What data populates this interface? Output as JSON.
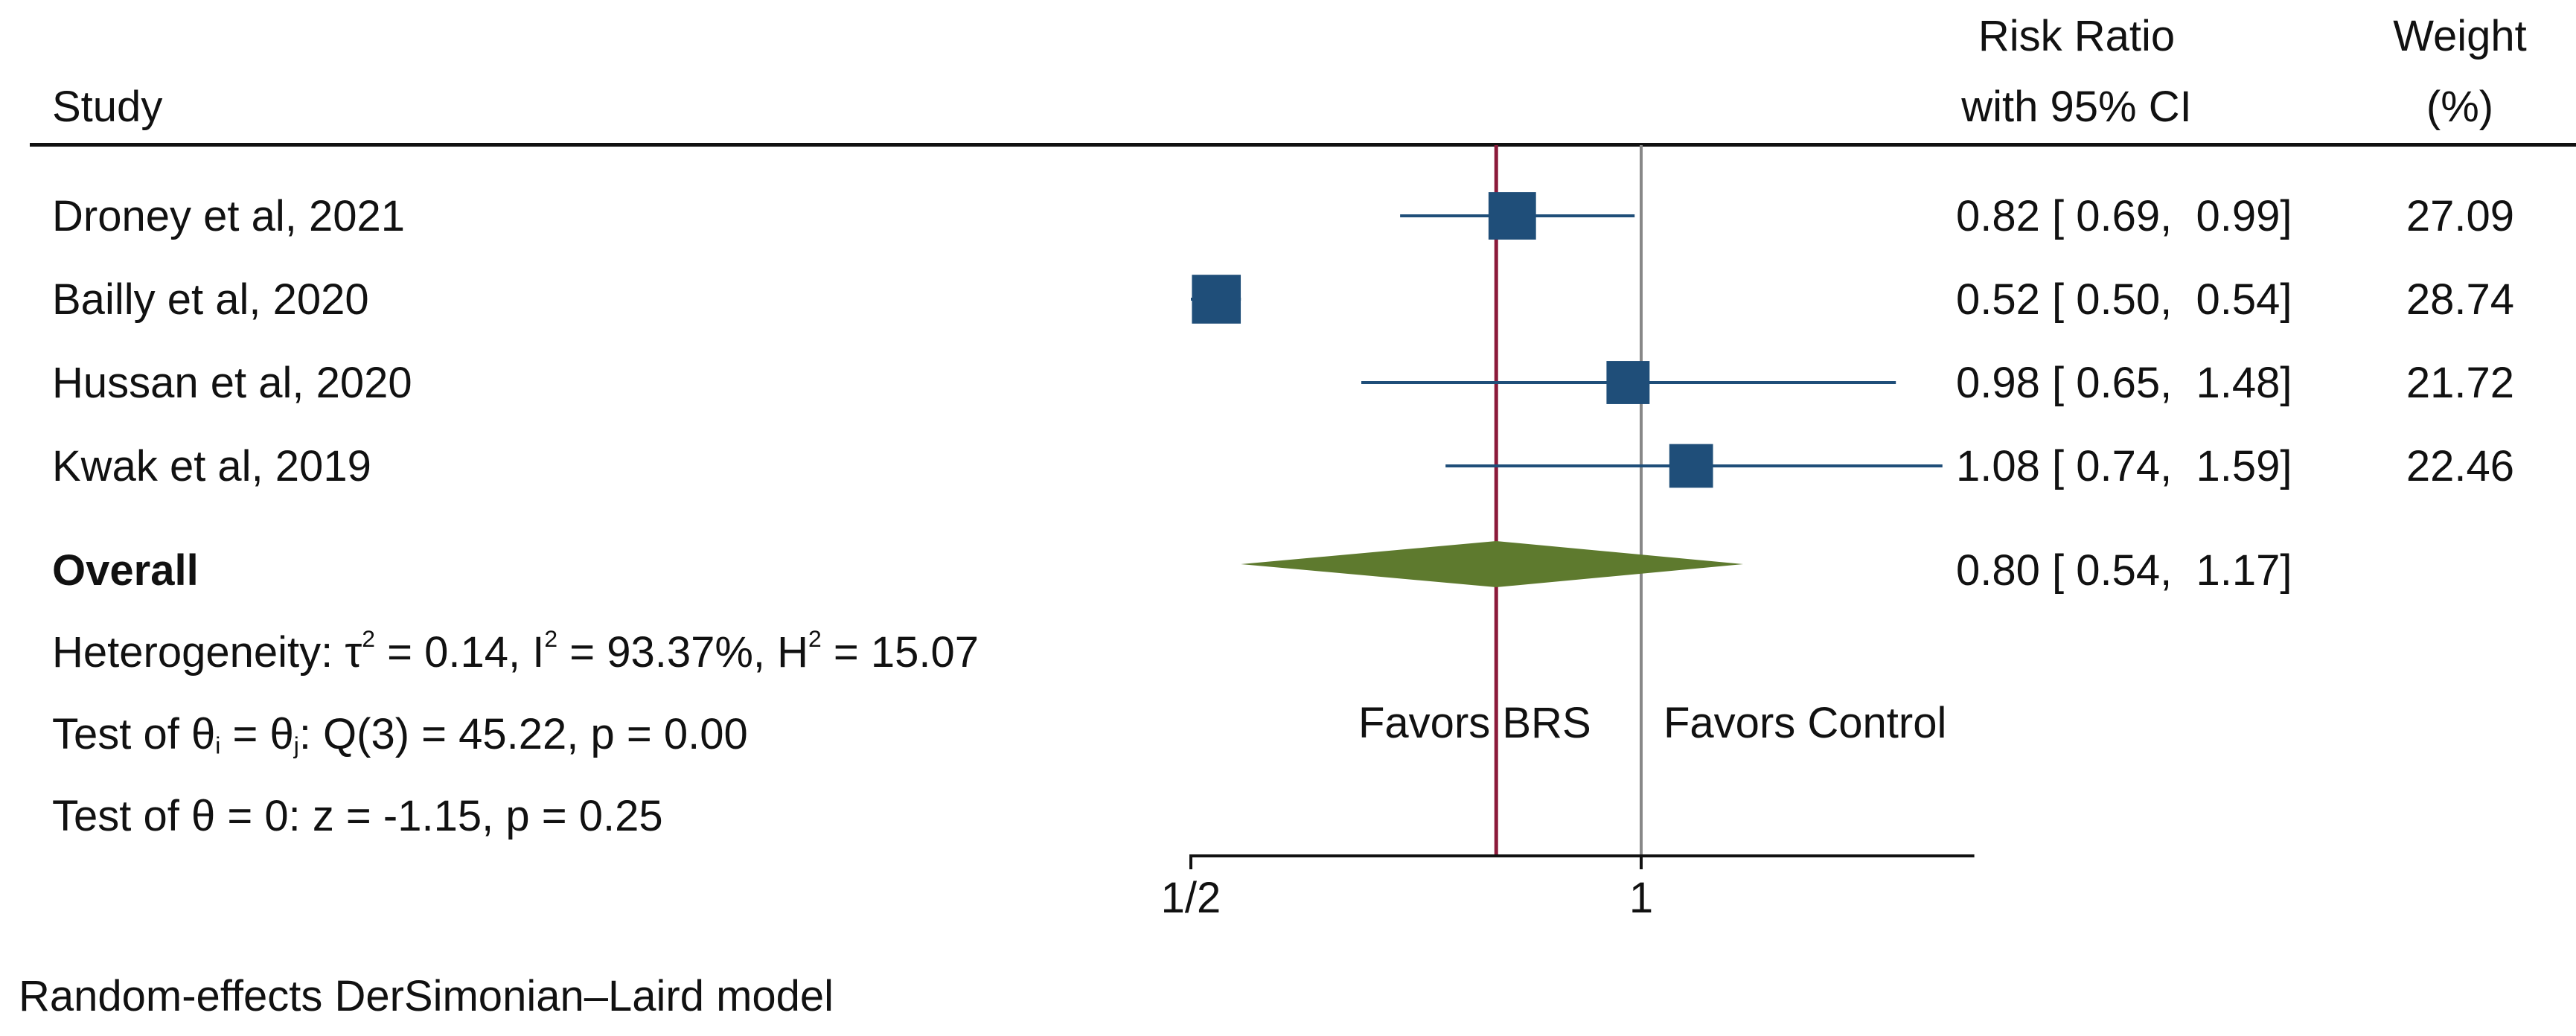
{
  "header": {
    "study_label": "Study",
    "rr_label_line1": "Risk Ratio",
    "rr_label_line2": "with 95% CI",
    "weight_label_line1": "Weight",
    "weight_label_line2": "(%)"
  },
  "rows": [
    {
      "study": "Droney et al, 2021",
      "ci_text": "0.82 [ 0.69,  0.99]",
      "weight": "27.09"
    },
    {
      "study": "Bailly et al, 2020",
      "ci_text": "0.52 [ 0.50,  0.54]",
      "weight": "28.74"
    },
    {
      "study": "Hussan et al, 2020",
      "ci_text": "0.98 [ 0.65,  1.48]",
      "weight": "21.72"
    },
    {
      "study": "Kwak et al, 2019",
      "ci_text": "1.08 [ 0.74,  1.59]",
      "weight": "22.46"
    }
  ],
  "overall": {
    "label": "Overall",
    "ci_text": "0.80 [ 0.54,  1.17]"
  },
  "stats": {
    "het_prefix": "Heterogeneity: ",
    "tau_sym": "τ",
    "tau_rest": " = 0.14, I",
    "i_rest": " = 93.37%, H",
    "h_rest": " = 15.07",
    "sq": "2",
    "test1_prefix": "Test of ",
    "theta": "θ",
    "sub_i": "i",
    "sub_j": "j",
    "eq": " = ",
    "test1_rest": ": Q(3) = 45.22, p = 0.00",
    "test2": "Test of θ = 0: z = -1.15, p = 0.25"
  },
  "favors": {
    "left": "Favors BRS",
    "right": "Favors Control"
  },
  "footnote": "Random-effects DerSimonian–Laird model",
  "colors": {
    "marker": "#1F4E79",
    "diamond": "#5E7A2E",
    "null_line": "#888888",
    "overall_line": "#8B1A3A",
    "axis": "#111111"
  },
  "chart_data": {
    "type": "forest",
    "title": "",
    "scale": "log",
    "xlabel": "",
    "xlim": [
      0.5,
      1.67
    ],
    "ticks": [
      {
        "value": 0.5,
        "label": "1/2"
      },
      {
        "value": 1,
        "label": "1"
      }
    ],
    "null_value": 1,
    "studies": [
      {
        "name": "Droney et al, 2021",
        "rr": 0.82,
        "lo": 0.69,
        "hi": 0.99,
        "weight": 27.09
      },
      {
        "name": "Bailly et al, 2020",
        "rr": 0.52,
        "lo": 0.5,
        "hi": 0.54,
        "weight": 28.74
      },
      {
        "name": "Hussan et al, 2020",
        "rr": 0.98,
        "lo": 0.65,
        "hi": 1.48,
        "weight": 21.72
      },
      {
        "name": "Kwak et al, 2019",
        "rr": 1.08,
        "lo": 0.74,
        "hi": 1.59,
        "weight": 22.46
      }
    ],
    "overall": {
      "rr": 0.8,
      "lo": 0.54,
      "hi": 1.17
    },
    "model": "Random-effects DerSimonian–Laird"
  }
}
